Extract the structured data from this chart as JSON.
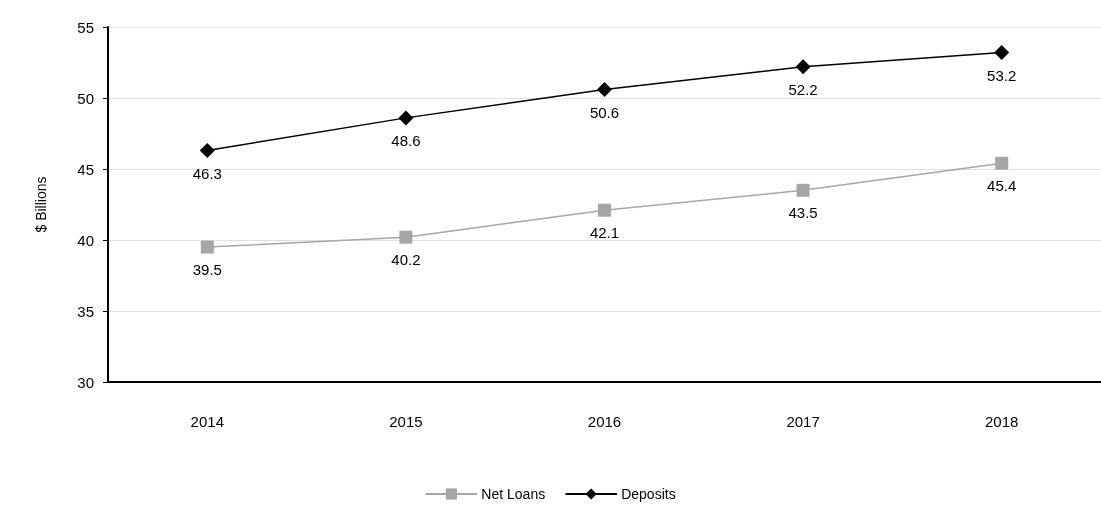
{
  "chart_data": {
    "type": "line",
    "ylabel": "$ Billions",
    "categories": [
      "2014",
      "2015",
      "2016",
      "2017",
      "2018"
    ],
    "series": [
      {
        "name": "Net Loans",
        "color": "#a6a6a6",
        "marker": "square",
        "values": [
          39.5,
          40.2,
          42.1,
          43.5,
          45.4
        ]
      },
      {
        "name": "Deposits",
        "color": "#000000",
        "marker": "diamond",
        "values": [
          46.3,
          48.6,
          50.6,
          52.2,
          53.2
        ]
      }
    ],
    "ylim": [
      30,
      55
    ],
    "yticks": [
      30,
      35,
      40,
      45,
      50,
      55
    ],
    "grid": "y",
    "legend": "bottom",
    "data_labels": true,
    "line_style": "solid"
  }
}
